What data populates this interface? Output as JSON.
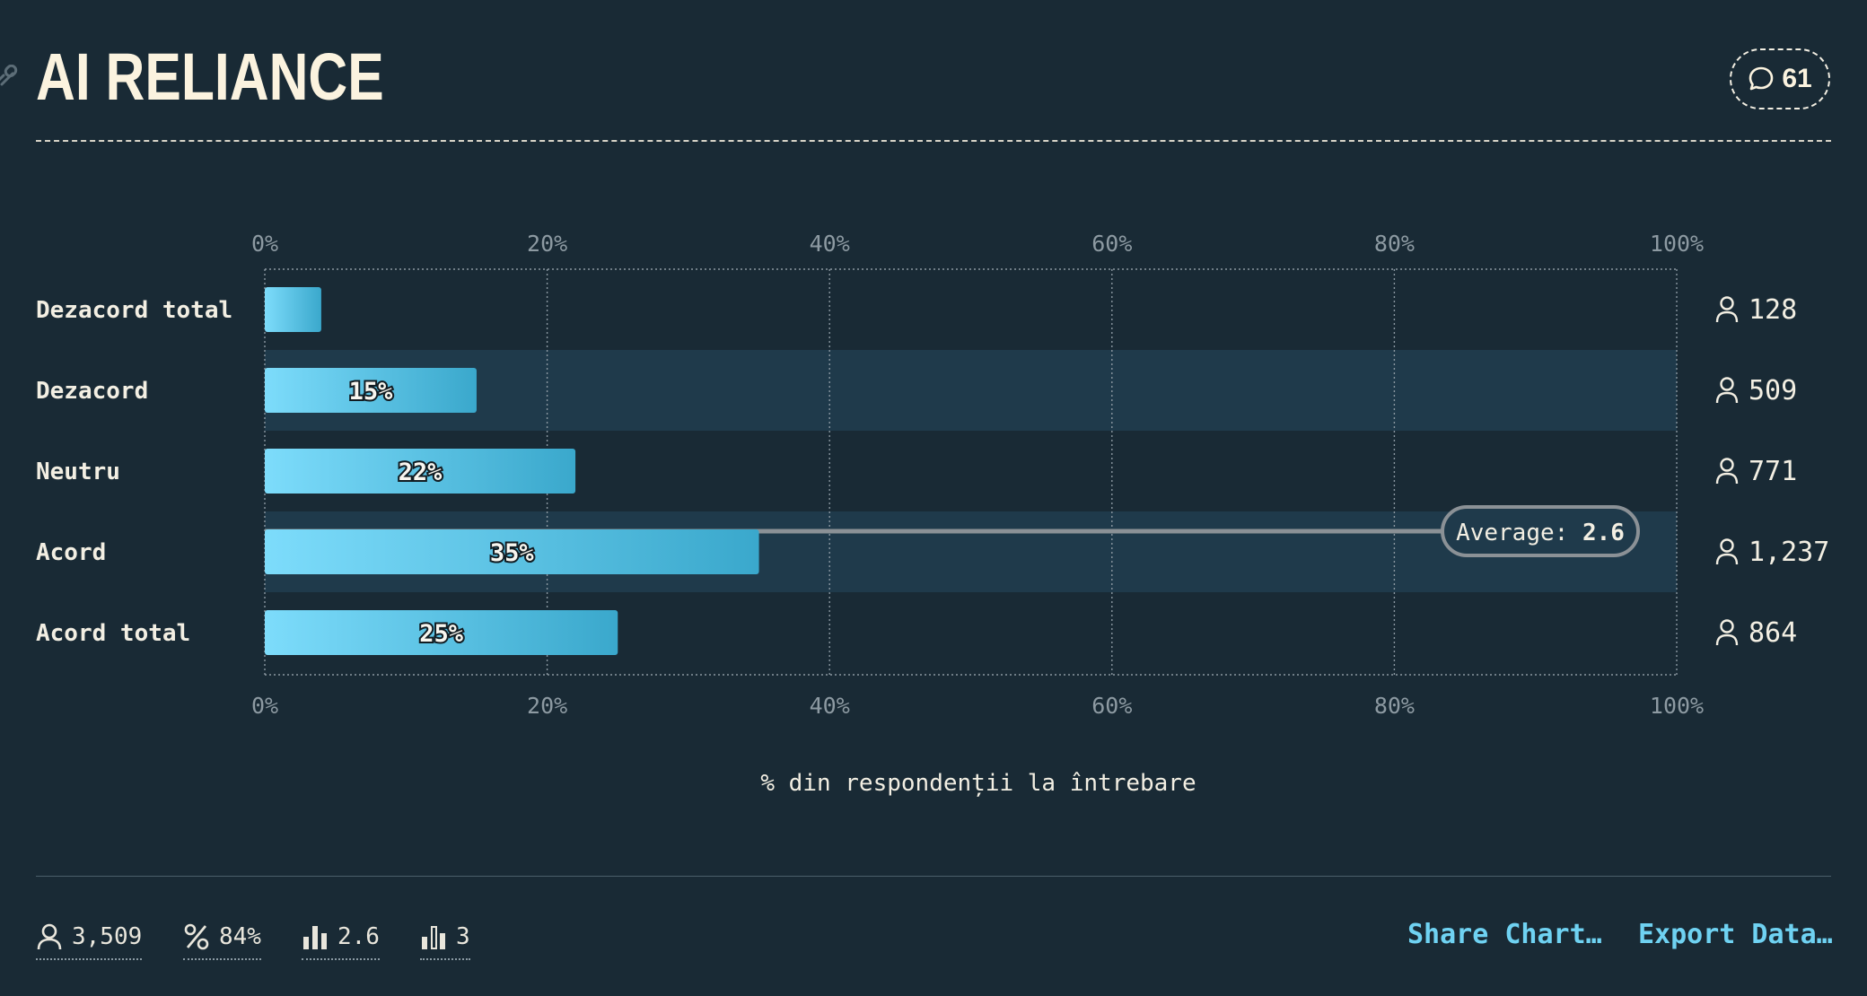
{
  "header": {
    "title": "AI RELIANCE",
    "comment_count": "61"
  },
  "colors": {
    "background": "#192a35",
    "bar_start": "#7ddcfb",
    "bar_end": "#3aa8cc",
    "accent": "#6fd2f2"
  },
  "chart_data": {
    "type": "bar",
    "orientation": "horizontal",
    "categories": [
      "Dezacord total",
      "Dezacord",
      "Neutru",
      "Acord",
      "Acord total"
    ],
    "values": [
      4,
      15,
      22,
      35,
      25
    ],
    "value_labels": [
      "",
      "15%",
      "22%",
      "35%",
      "25%"
    ],
    "counts": [
      "128",
      "509",
      "771",
      "1,237",
      "864"
    ],
    "xlim": [
      0,
      100
    ],
    "x_ticks": [
      "0%",
      "20%",
      "40%",
      "60%",
      "80%",
      "100%"
    ],
    "x_tick_values": [
      0,
      20,
      40,
      60,
      80,
      100
    ],
    "xlabel": "% din respondenții la întrebare",
    "grid": true,
    "average": {
      "label": "Average:",
      "value": "2.6"
    }
  },
  "footer": {
    "stats": [
      {
        "icon": "person-icon",
        "value": "3,509"
      },
      {
        "icon": "percent-icon",
        "value": "84%"
      },
      {
        "icon": "bar-chart-icon",
        "value": "2.6"
      },
      {
        "icon": "bar-chart-outline-icon",
        "value": "3"
      }
    ],
    "share_label": "Share Chart…",
    "export_label": "Export Data…"
  }
}
